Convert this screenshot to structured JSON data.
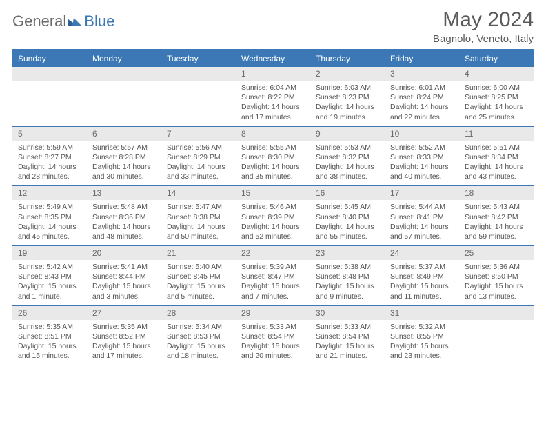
{
  "brand": {
    "part1": "General",
    "part2": "Blue"
  },
  "title": "May 2024",
  "location": "Bagnolo, Veneto, Italy",
  "colors": {
    "accent": "#3b78b5",
    "header_text": "#5a5a5a",
    "daynum_bg": "#e9e9e9",
    "body_text": "#555555"
  },
  "weekdays": [
    "Sunday",
    "Monday",
    "Tuesday",
    "Wednesday",
    "Thursday",
    "Friday",
    "Saturday"
  ],
  "weeks": [
    [
      null,
      null,
      null,
      {
        "n": "1",
        "sr": "6:04 AM",
        "ss": "8:22 PM",
        "dl": "14 hours and 17 minutes."
      },
      {
        "n": "2",
        "sr": "6:03 AM",
        "ss": "8:23 PM",
        "dl": "14 hours and 19 minutes."
      },
      {
        "n": "3",
        "sr": "6:01 AM",
        "ss": "8:24 PM",
        "dl": "14 hours and 22 minutes."
      },
      {
        "n": "4",
        "sr": "6:00 AM",
        "ss": "8:25 PM",
        "dl": "14 hours and 25 minutes."
      }
    ],
    [
      {
        "n": "5",
        "sr": "5:59 AM",
        "ss": "8:27 PM",
        "dl": "14 hours and 28 minutes."
      },
      {
        "n": "6",
        "sr": "5:57 AM",
        "ss": "8:28 PM",
        "dl": "14 hours and 30 minutes."
      },
      {
        "n": "7",
        "sr": "5:56 AM",
        "ss": "8:29 PM",
        "dl": "14 hours and 33 minutes."
      },
      {
        "n": "8",
        "sr": "5:55 AM",
        "ss": "8:30 PM",
        "dl": "14 hours and 35 minutes."
      },
      {
        "n": "9",
        "sr": "5:53 AM",
        "ss": "8:32 PM",
        "dl": "14 hours and 38 minutes."
      },
      {
        "n": "10",
        "sr": "5:52 AM",
        "ss": "8:33 PM",
        "dl": "14 hours and 40 minutes."
      },
      {
        "n": "11",
        "sr": "5:51 AM",
        "ss": "8:34 PM",
        "dl": "14 hours and 43 minutes."
      }
    ],
    [
      {
        "n": "12",
        "sr": "5:49 AM",
        "ss": "8:35 PM",
        "dl": "14 hours and 45 minutes."
      },
      {
        "n": "13",
        "sr": "5:48 AM",
        "ss": "8:36 PM",
        "dl": "14 hours and 48 minutes."
      },
      {
        "n": "14",
        "sr": "5:47 AM",
        "ss": "8:38 PM",
        "dl": "14 hours and 50 minutes."
      },
      {
        "n": "15",
        "sr": "5:46 AM",
        "ss": "8:39 PM",
        "dl": "14 hours and 52 minutes."
      },
      {
        "n": "16",
        "sr": "5:45 AM",
        "ss": "8:40 PM",
        "dl": "14 hours and 55 minutes."
      },
      {
        "n": "17",
        "sr": "5:44 AM",
        "ss": "8:41 PM",
        "dl": "14 hours and 57 minutes."
      },
      {
        "n": "18",
        "sr": "5:43 AM",
        "ss": "8:42 PM",
        "dl": "14 hours and 59 minutes."
      }
    ],
    [
      {
        "n": "19",
        "sr": "5:42 AM",
        "ss": "8:43 PM",
        "dl": "15 hours and 1 minute."
      },
      {
        "n": "20",
        "sr": "5:41 AM",
        "ss": "8:44 PM",
        "dl": "15 hours and 3 minutes."
      },
      {
        "n": "21",
        "sr": "5:40 AM",
        "ss": "8:45 PM",
        "dl": "15 hours and 5 minutes."
      },
      {
        "n": "22",
        "sr": "5:39 AM",
        "ss": "8:47 PM",
        "dl": "15 hours and 7 minutes."
      },
      {
        "n": "23",
        "sr": "5:38 AM",
        "ss": "8:48 PM",
        "dl": "15 hours and 9 minutes."
      },
      {
        "n": "24",
        "sr": "5:37 AM",
        "ss": "8:49 PM",
        "dl": "15 hours and 11 minutes."
      },
      {
        "n": "25",
        "sr": "5:36 AM",
        "ss": "8:50 PM",
        "dl": "15 hours and 13 minutes."
      }
    ],
    [
      {
        "n": "26",
        "sr": "5:35 AM",
        "ss": "8:51 PM",
        "dl": "15 hours and 15 minutes."
      },
      {
        "n": "27",
        "sr": "5:35 AM",
        "ss": "8:52 PM",
        "dl": "15 hours and 17 minutes."
      },
      {
        "n": "28",
        "sr": "5:34 AM",
        "ss": "8:53 PM",
        "dl": "15 hours and 18 minutes."
      },
      {
        "n": "29",
        "sr": "5:33 AM",
        "ss": "8:54 PM",
        "dl": "15 hours and 20 minutes."
      },
      {
        "n": "30",
        "sr": "5:33 AM",
        "ss": "8:54 PM",
        "dl": "15 hours and 21 minutes."
      },
      {
        "n": "31",
        "sr": "5:32 AM",
        "ss": "8:55 PM",
        "dl": "15 hours and 23 minutes."
      },
      null
    ]
  ],
  "labels": {
    "sunrise": "Sunrise:",
    "sunset": "Sunset:",
    "daylight": "Daylight:"
  }
}
